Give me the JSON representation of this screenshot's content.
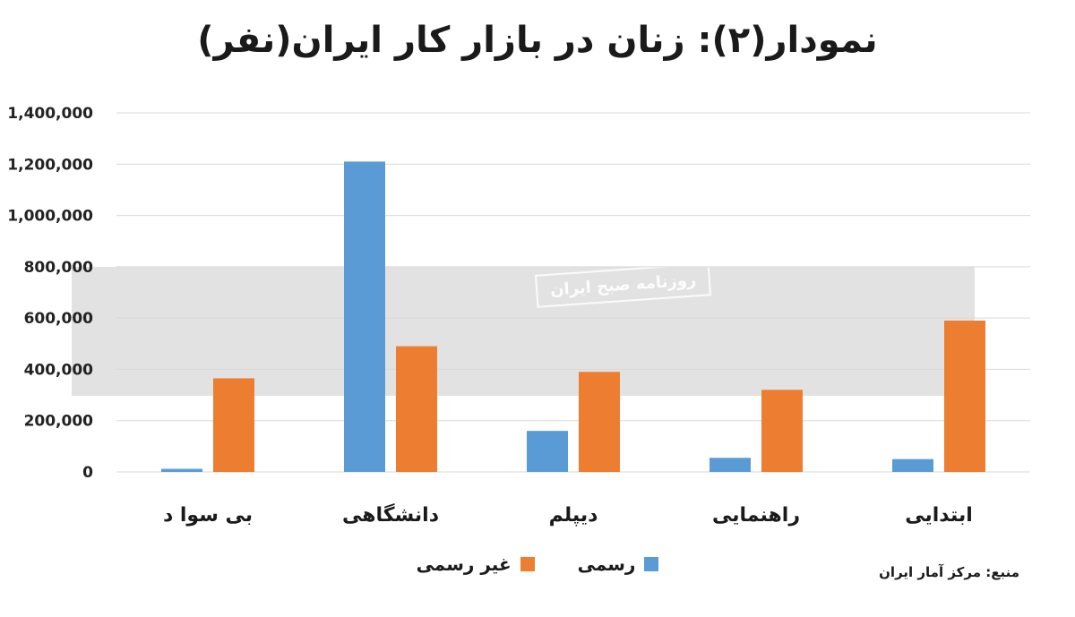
{
  "chart_data": {
    "type": "bar",
    "title": "نمودار(۲): زنان در بازار کار ایران(نفر)",
    "categories": [
      "بی سوا د",
      "دانشگاهی",
      "دیپلم",
      "راهنمایی",
      "ابتدایی"
    ],
    "series": [
      {
        "name": "رسمی",
        "color": "#5b9bd5",
        "values": [
          12000,
          1210000,
          160000,
          55000,
          50000
        ]
      },
      {
        "name": "غیر رسمی",
        "color": "#ed7d31",
        "values": [
          365000,
          490000,
          390000,
          320000,
          590000
        ]
      }
    ],
    "ylim": [
      0,
      1400000
    ],
    "yticks": [
      0,
      200000,
      400000,
      600000,
      800000,
      1000000,
      1200000,
      1400000
    ],
    "ytick_labels": [
      "0",
      "200,000",
      "400,000",
      "600,000",
      "800,000",
      "1,000,000",
      "1,200,000",
      "1,400,000"
    ],
    "grid": true,
    "legend_position": "bottom"
  },
  "source": "منبع: مرکز آمار ایران",
  "watermark": {
    "stamp_text": "روزنامه صبح ایران"
  }
}
